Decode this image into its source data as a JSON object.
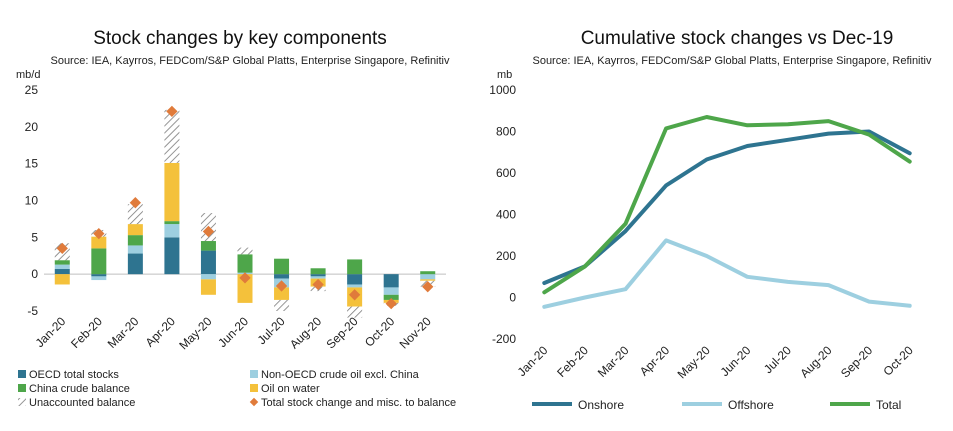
{
  "chart_data": [
    {
      "type": "bar",
      "stacked": true,
      "title": "Stock changes by key components",
      "source": "Source: IEA, Kayrros, FEDCom/S&P Global Platts, Enterprise Singapore, Refinitiv",
      "ylabel": "mb/d",
      "ylim": [
        -5,
        25
      ],
      "yticks": [
        "25",
        "20",
        "15",
        "10",
        "5",
        "0",
        "-5"
      ],
      "categories": [
        "Jan-20",
        "Feb-20",
        "Mar-20",
        "Apr-20",
        "May-20",
        "Jun-20",
        "Jul-20",
        "Aug-20",
        "Sep-20",
        "Oct-20",
        "Nov-20"
      ],
      "series": [
        {
          "name": "OECD total stocks",
          "color": "#2e7490",
          "values": [
            0.7,
            -0.3,
            2.8,
            5.0,
            3.2,
            0.0,
            -0.6,
            -0.3,
            -1.4,
            -1.8,
            0.0
          ]
        },
        {
          "name": "Non-OECD crude oil excl. China",
          "color": "#9dcfe0",
          "values": [
            0.6,
            -0.5,
            1.1,
            1.8,
            -0.7,
            0.2,
            -1.2,
            -0.3,
            -0.4,
            -1.0,
            -0.7
          ]
        },
        {
          "name": "China crude balance",
          "color": "#4ea64a",
          "values": [
            0.6,
            3.5,
            1.4,
            0.4,
            1.3,
            2.5,
            2.1,
            0.8,
            2.0,
            -0.7,
            0.4
          ]
        },
        {
          "name": "Oil on water",
          "color": "#f4c13b",
          "values": [
            -1.4,
            1.6,
            1.5,
            7.9,
            -2.1,
            -3.9,
            -1.7,
            -1.1,
            -2.6,
            -0.4,
            -0.2
          ]
        },
        {
          "name": "Unaccounted balance",
          "color": "hatch",
          "values": [
            2.3,
            0.9,
            2.7,
            7.2,
            3.8,
            0.9,
            -1.5,
            -0.6,
            -1.5,
            -0.4,
            -0.8
          ]
        }
      ],
      "total": {
        "name": "Total stock change and misc. to balance",
        "color": "#e07b3b",
        "values": [
          3.5,
          5.5,
          9.7,
          22.1,
          5.8,
          -0.5,
          -1.6,
          -1.4,
          -2.8,
          -4.0,
          -1.7
        ]
      }
    },
    {
      "type": "line",
      "title": "Cumulative stock changes vs Dec-19",
      "source": "Source: IEA, Kayrros, FEDCom/S&P Global Platts, Enterprise Singapore, Refinitiv",
      "ylabel": "mb",
      "ylim": [
        -200,
        1000
      ],
      "yticks": [
        "1000",
        "800",
        "600",
        "400",
        "200",
        "0",
        "-200"
      ],
      "categories": [
        "Jan-20",
        "Feb-20",
        "Mar-20",
        "Apr-20",
        "May-20",
        "Jun-20",
        "Jul-20",
        "Aug-20",
        "Sep-20",
        "Oct-20"
      ],
      "series": [
        {
          "name": "Onshore",
          "color": "#2e7490",
          "values": [
            70,
            150,
            320,
            540,
            665,
            730,
            760,
            790,
            800,
            695
          ]
        },
        {
          "name": "Offshore",
          "color": "#9dcfe0",
          "values": [
            -45,
            0,
            40,
            275,
            200,
            100,
            75,
            60,
            -20,
            -40
          ]
        },
        {
          "name": "Total",
          "color": "#4ea64a",
          "values": [
            25,
            150,
            355,
            815,
            870,
            830,
            835,
            850,
            785,
            655
          ]
        }
      ]
    }
  ]
}
